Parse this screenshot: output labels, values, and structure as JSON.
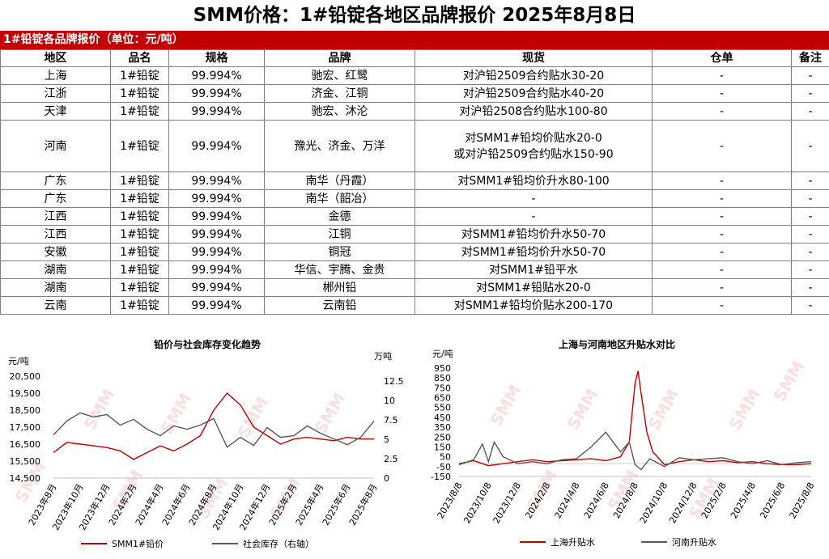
{
  "page_title": "SMM价格：1#铅锭各地区品牌报价 2025年8月8日",
  "table": {
    "banner": "1#铅锭各品牌报价（单位：元/吨）",
    "headers": [
      "地区",
      "品名",
      "规格",
      "品牌",
      "现货",
      "仓单",
      "备注"
    ],
    "rows": [
      [
        "上海",
        "1#铅锭",
        "99.994%",
        "驰宏、红鹭",
        "对沪铅2509合约贴水30-20",
        "-",
        "-"
      ],
      [
        "江浙",
        "1#铅锭",
        "99.994%",
        "济金、江铜",
        "对沪铅2509合约贴水40-20",
        "-",
        "-"
      ],
      [
        "天津",
        "1#铅锭",
        "99.994%",
        "驰宏、沐沦",
        "对沪铅2508合约贴水100-80",
        "-",
        "-"
      ],
      [
        "河南",
        "1#铅锭",
        "99.994%",
        "豫光、济金、万洋",
        "对SMM1#铅均价贴水20-0\n或对沪铅2509合约贴水150-90",
        "-",
        "-"
      ],
      [
        "广东",
        "1#铅锭",
        "99.994%",
        "南华（丹霞）",
        "对SMM1#铅均价升水80-100",
        "-",
        "-"
      ],
      [
        "广东",
        "1#铅锭",
        "99.994%",
        "南华（韶冶）",
        "-",
        "-",
        "-"
      ],
      [
        "江西",
        "1#铅锭",
        "99.994%",
        "金德",
        "-",
        "-",
        "-"
      ],
      [
        "江西",
        "1#铅锭",
        "99.994%",
        "江铜",
        "对SMM1#铅均价升水50-70",
        "-",
        "-"
      ],
      [
        "安徽",
        "1#铅锭",
        "99.994%",
        "铜冠",
        "对SMM1#铅均价升水50-70",
        "-",
        "-"
      ],
      [
        "湖南",
        "1#铅锭",
        "99.994%",
        "华信、宇腾、金贵",
        "对SMM1#铅平水",
        "-",
        "-"
      ],
      [
        "湖南",
        "1#铅锭",
        "99.994%",
        "郴州铅",
        "对SMM1#铅贴水20-0",
        "-",
        "-"
      ],
      [
        "云南",
        "1#铅锭",
        "99.994%",
        "云南铅",
        "对SMM1#铅均价贴水200-170",
        "-",
        "-"
      ]
    ]
  },
  "watermark": "SMM",
  "colors": {
    "red": "#c00000",
    "gray": "#595959",
    "watermark": "#f4c7c7"
  },
  "chart_data": [
    {
      "type": "line",
      "title": "铅价与社会库存变化趋势",
      "ylabel": "元/吨",
      "y2label": "万吨",
      "ylim": [
        14500,
        20500
      ],
      "y2lim": [
        0,
        12.5
      ],
      "yticks": [
        "20,500",
        "19,500",
        "18,500",
        "17,500",
        "16,500",
        "15,500",
        "14,500"
      ],
      "y2ticks": [
        "12.5",
        "10",
        "7.5",
        "5",
        "2.5",
        "0"
      ],
      "xticks": [
        "2023年8月",
        "2023年10月",
        "2023年12月",
        "2024年2月",
        "2024年4月",
        "2024年6月",
        "2024年8月",
        "2024年10月",
        "2024年12月",
        "2025年2月",
        "2025年4月",
        "2025年6月",
        "2025年8月"
      ],
      "legend_position": "bottom",
      "series": [
        {
          "name": "SMM1#铅价",
          "axis": "left",
          "x": [
            0,
            0.5,
            1,
            1.5,
            2,
            2.5,
            3,
            3.5,
            4,
            4.5,
            5,
            5.5,
            6,
            6.5,
            7,
            7.5,
            8,
            8.5,
            9,
            9.5,
            10,
            10.5,
            11,
            11.5,
            12
          ],
          "values": [
            16000,
            16600,
            16500,
            16400,
            16300,
            16100,
            15600,
            16000,
            16400,
            16100,
            16500,
            17000,
            18500,
            19500,
            18800,
            17500,
            17000,
            16500,
            16800,
            16900,
            16800,
            16700,
            16900,
            16800,
            16800
          ]
        },
        {
          "name": "社会库存（右轴）",
          "axis": "right",
          "x": [
            0,
            0.5,
            1,
            1.5,
            2,
            2.5,
            3,
            3.5,
            4,
            4.5,
            5,
            5.5,
            6,
            6.5,
            7,
            7.5,
            8,
            8.5,
            9,
            9.5,
            10,
            10.5,
            11,
            11.5,
            12
          ],
          "values": [
            5.3,
            7,
            8,
            7.5,
            7.8,
            6.5,
            7.2,
            6,
            5.2,
            6.4,
            6,
            6.5,
            7.3,
            3.8,
            5,
            4,
            6.2,
            5,
            5.2,
            6.4,
            5.5,
            4.8,
            4.1,
            5,
            7
          ]
        }
      ]
    },
    {
      "type": "line",
      "title": "上海与河南地区升贴水对比",
      "ylabel": "元/吨",
      "ylim": [
        -150,
        950
      ],
      "yticks": [
        "950",
        "850",
        "750",
        "650",
        "550",
        "450",
        "350",
        "250",
        "150",
        "50",
        "-50",
        "-150"
      ],
      "xticks": [
        "2023/8/8",
        "2023/10/8",
        "2023/12/8",
        "2024/2/8",
        "2024/4/8",
        "2024/6/8",
        "2024/8/8",
        "2024/10/8",
        "2024/12/8",
        "2025/2/8",
        "2025/4/8",
        "2025/6/8",
        "2025/8/8"
      ],
      "legend_position": "bottom",
      "series": [
        {
          "name": "上海升贴水",
          "color": "#c00000",
          "x": [
            0,
            0.5,
            1,
            1.5,
            2,
            2.5,
            3,
            3.5,
            4,
            4.5,
            5,
            5.5,
            5.8,
            6,
            6.1,
            6.2,
            6.4,
            6.6,
            7,
            7.5,
            8,
            8.5,
            9,
            9.5,
            10,
            10.5,
            11,
            11.5,
            12
          ],
          "values": [
            -20,
            10,
            -40,
            -20,
            0,
            20,
            0,
            10,
            20,
            30,
            10,
            50,
            200,
            800,
            920,
            700,
            300,
            100,
            -30,
            0,
            20,
            0,
            10,
            -10,
            0,
            -20,
            -30,
            -30,
            -20
          ]
        },
        {
          "name": "河南升贴水",
          "color": "#595959",
          "x": [
            0,
            0.5,
            0.8,
            1,
            1.2,
            1.5,
            2,
            2.5,
            3,
            3.5,
            4,
            4.5,
            5,
            5.5,
            5.8,
            6,
            6.2,
            6.5,
            7,
            7.5,
            8,
            8.5,
            9,
            9.5,
            10,
            10.5,
            11,
            11.5,
            12
          ],
          "values": [
            -30,
            20,
            180,
            0,
            200,
            50,
            -20,
            0,
            -20,
            20,
            30,
            150,
            300,
            100,
            200,
            -30,
            -80,
            30,
            -50,
            40,
            20,
            30,
            40,
            0,
            -20,
            10,
            -30,
            -10,
            0
          ]
        }
      ]
    }
  ]
}
